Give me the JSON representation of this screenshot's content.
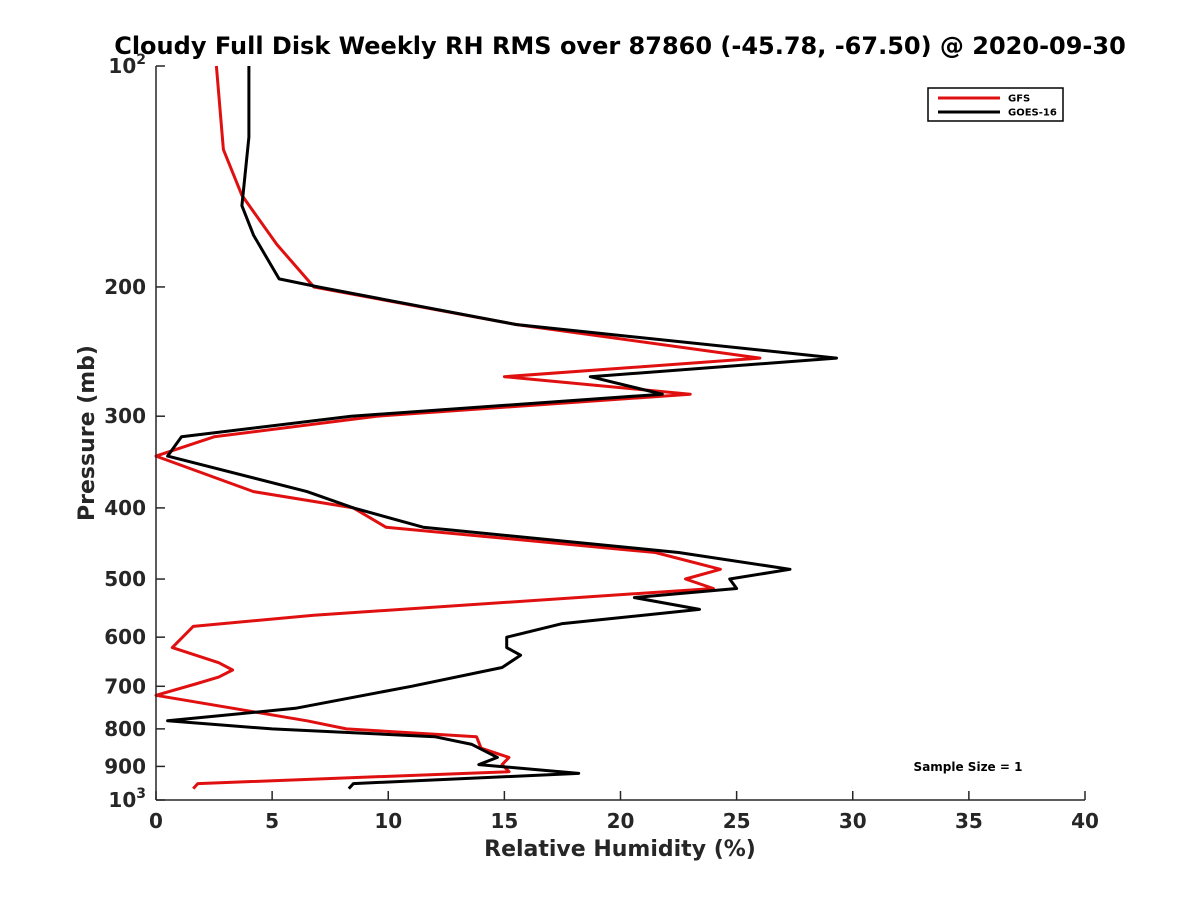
{
  "chart_data": {
    "type": "line",
    "title": "Cloudy Full Disk Weekly RH RMS over 87860 (-45.78, -67.50) @ 2020-09-30",
    "xlabel": "Relative Humidity (%)",
    "ylabel": "Pressure (mb)",
    "xlim": [
      0,
      40
    ],
    "ylim": [
      100,
      1000
    ],
    "yscale": "log",
    "y_reversed": true,
    "grid": false,
    "legend_position": "top-right",
    "x_ticks": [
      "0",
      "5",
      "10",
      "15",
      "20",
      "25",
      "30",
      "35",
      "40"
    ],
    "y_ticks": [
      {
        "value": 100,
        "base": "10",
        "exp": "2"
      },
      {
        "value": 200,
        "label": "200"
      },
      {
        "value": 300,
        "label": "300"
      },
      {
        "value": 400,
        "label": "400"
      },
      {
        "value": 500,
        "label": "500"
      },
      {
        "value": 600,
        "label": "600"
      },
      {
        "value": 700,
        "label": "700"
      },
      {
        "value": 800,
        "label": "800"
      },
      {
        "value": 900,
        "label": "900"
      },
      {
        "value": 1000,
        "base": "10",
        "exp": "3"
      }
    ],
    "annotation": "Sample Size = 1",
    "series": [
      {
        "name": "GFS",
        "color": "#e01010",
        "points": [
          [
            2.6,
            100
          ],
          [
            2.9,
            130
          ],
          [
            3.7,
            150
          ],
          [
            5.2,
            175
          ],
          [
            6.8,
            200
          ],
          [
            15.5,
            225
          ],
          [
            26,
            250
          ],
          [
            15,
            265
          ],
          [
            23,
            280
          ],
          [
            9.5,
            300
          ],
          [
            2.5,
            320
          ],
          [
            0,
            340
          ],
          [
            4.2,
            380
          ],
          [
            8.5,
            400
          ],
          [
            9.9,
            425
          ],
          [
            21.5,
            460
          ],
          [
            24.3,
            485
          ],
          [
            22.8,
            500
          ],
          [
            24,
            515
          ],
          [
            6.8,
            560
          ],
          [
            1.6,
            580
          ],
          [
            0.7,
            620
          ],
          [
            2.7,
            650
          ],
          [
            3.3,
            665
          ],
          [
            2.7,
            680
          ],
          [
            1.7,
            695
          ],
          [
            0,
            720
          ],
          [
            6.5,
            780
          ],
          [
            8.2,
            800
          ],
          [
            13.8,
            820
          ],
          [
            14,
            850
          ],
          [
            15.2,
            875
          ],
          [
            14.9,
            895
          ],
          [
            15.2,
            915
          ],
          [
            1.8,
            950
          ],
          [
            1.6,
            965
          ]
        ]
      },
      {
        "name": "GOES-16",
        "color": "#000000",
        "points": [
          [
            4,
            100
          ],
          [
            4,
            125
          ],
          [
            3.7,
            155
          ],
          [
            4.2,
            170
          ],
          [
            5.3,
            195
          ],
          [
            7,
            200
          ],
          [
            15.5,
            225
          ],
          [
            29.3,
            250
          ],
          [
            18.7,
            265
          ],
          [
            21.8,
            280
          ],
          [
            8.4,
            300
          ],
          [
            1.1,
            320
          ],
          [
            0.5,
            340
          ],
          [
            6.5,
            380
          ],
          [
            8.5,
            400
          ],
          [
            11.5,
            425
          ],
          [
            22.5,
            460
          ],
          [
            27.3,
            485
          ],
          [
            24.7,
            500
          ],
          [
            25,
            515
          ],
          [
            20.6,
            530
          ],
          [
            23.4,
            550
          ],
          [
            17.5,
            575
          ],
          [
            15.1,
            600
          ],
          [
            15.1,
            620
          ],
          [
            15.7,
            635
          ],
          [
            14.9,
            660
          ],
          [
            11,
            700
          ],
          [
            6,
            750
          ],
          [
            0.5,
            780
          ],
          [
            5,
            800
          ],
          [
            12,
            820
          ],
          [
            13.6,
            840
          ],
          [
            14.7,
            875
          ],
          [
            13.9,
            895
          ],
          [
            18.2,
            920
          ],
          [
            8.5,
            950
          ],
          [
            8.3,
            965
          ]
        ]
      }
    ]
  }
}
